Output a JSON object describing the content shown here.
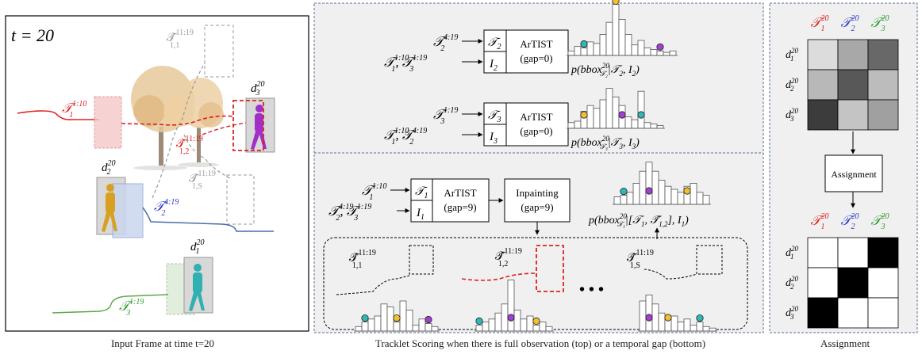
{
  "captions": {
    "left": "Input Frame at time t=20",
    "middle": "Tracklet Scoring when there is full observation (top) or a temporal gap (bottom)",
    "right": "Assignment"
  },
  "panel1": {
    "time_label": "t = 20",
    "tracklets": {
      "t1": {
        "name": "T",
        "sub": "1",
        "sup": "1:10",
        "color": "#e02020"
      },
      "t2": {
        "name": "T",
        "sub": "2",
        "sup": "4:19",
        "color": "#2a36c8"
      },
      "t3": {
        "name": "T",
        "sub": "3",
        "sup": "1:19",
        "color": "#2a9a2a"
      }
    },
    "hyp": {
      "h11": {
        "sub": "1,1",
        "sup": "11:19"
      },
      "h12": {
        "sub": "1,2",
        "sup": "11:19"
      },
      "h1s": {
        "sub": "1,S",
        "sup": "11:19"
      }
    },
    "detections": {
      "d1": {
        "sub": "1",
        "sup": "20"
      },
      "d2": {
        "sub": "2",
        "sup": "20"
      },
      "d3": {
        "sub": "3",
        "sup": "20"
      }
    }
  },
  "panel2": {
    "top1": {
      "in_a": "T",
      "in_a_sup": "4:19",
      "in_b": "T",
      "in_b_sup1": "1:10",
      "in_b_sup2": "1:19",
      "box_a": "T2",
      "box_b": "I2",
      "model": "ArTIST",
      "gap": "(gap=0)",
      "prob": "p(bbox²⁰T₂ | T₂, I₂)"
    },
    "top2": {
      "in_a_sup": "1:19",
      "in_b_sup1": "1:10",
      "in_b_sup2": "4:19",
      "box_a": "T3",
      "box_b": "I3",
      "model": "ArTIST",
      "gap": "(gap=0)",
      "prob": "p(bbox²⁰T₃ | T₃, I₃)"
    },
    "bottom": {
      "in_a_sup": "1:10",
      "in_b_sup1": "4:19",
      "in_b_sup2": "1:19",
      "box_a": "T1",
      "box_b": "I1",
      "model": "ArTIST",
      "gap": "(gap=9)",
      "inpaint": "Inpainting",
      "inpaint_gap": "(gap=9)",
      "prob": "p(bbox²⁰T₁ | [T₁, T̂₁,₂], I₁)",
      "dots": "• • •"
    }
  },
  "panel3": {
    "col_heads": [
      {
        "sup": "20",
        "sub": "1",
        "color": "#e02020"
      },
      {
        "sup": "20",
        "sub": "2",
        "color": "#2a36c8"
      },
      {
        "sup": "20",
        "sub": "3",
        "color": "#2a9a2a"
      }
    ],
    "row_heads": [
      "d1",
      "d2",
      "d3"
    ],
    "score_matrix": [
      [
        "#dcdcdc",
        "#a8a8a8",
        "#686868"
      ],
      [
        "#b8b8b8",
        "#585858",
        "#bcbcbc"
      ],
      [
        "#3c3c3c",
        "#c4c4c4",
        "#a0a0a0"
      ]
    ],
    "assignment_label": "Assignment",
    "assign_matrix": [
      [
        0,
        0,
        1
      ],
      [
        0,
        1,
        0
      ],
      [
        1,
        0,
        0
      ]
    ]
  },
  "histograms": {
    "top1": [
      3,
      6,
      5,
      9,
      8,
      14,
      22,
      34,
      24,
      14,
      7,
      10,
      5,
      4,
      3,
      2,
      3
    ],
    "top2": [
      4,
      5,
      12,
      16,
      14,
      20,
      28,
      22,
      16,
      8,
      6,
      26,
      4,
      3,
      2
    ],
    "bottom_main": [
      5,
      6,
      8,
      14,
      22,
      28,
      22,
      16,
      12,
      10,
      8,
      12,
      14,
      8,
      6
    ],
    "bottom_a": [
      3,
      6,
      8,
      10,
      18,
      16,
      6,
      20,
      14,
      4,
      8,
      5,
      3
    ],
    "bottom_b": [
      4,
      6,
      8,
      12,
      18,
      34,
      14,
      8,
      10,
      4,
      6,
      3
    ],
    "bottom_c": [
      20,
      24,
      18,
      12,
      8,
      10,
      6,
      8,
      4,
      6,
      3,
      2
    ]
  }
}
